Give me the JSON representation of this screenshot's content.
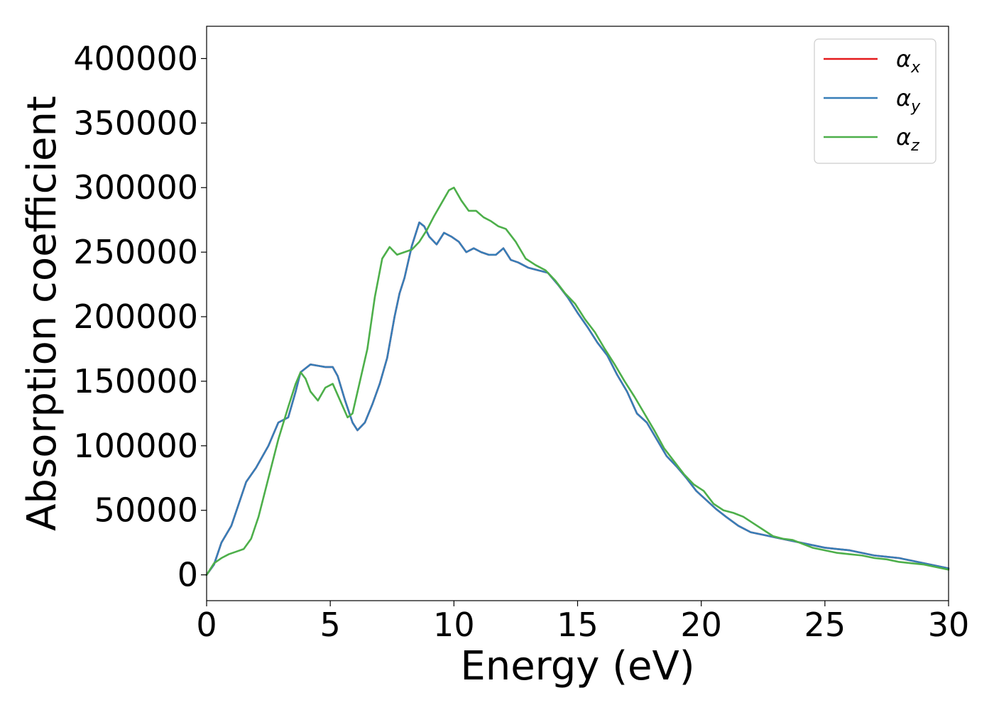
{
  "chart_data": {
    "type": "line",
    "title": "",
    "xlabel": "Energy (eV)",
    "ylabel": "Absorption coefficient",
    "xlim": [
      0,
      30
    ],
    "ylim": [
      -20000,
      425000
    ],
    "xticks": [
      0,
      5,
      10,
      15,
      20,
      25,
      30
    ],
    "yticks": [
      0,
      50000,
      100000,
      150000,
      200000,
      250000,
      300000,
      350000,
      400000
    ],
    "grid": false,
    "legend_placement": "top-right",
    "series": [
      {
        "name": "α_x",
        "label_base": "α",
        "label_sub": "x",
        "color": "#e41a1c",
        "x": [
          0,
          0.3,
          0.6,
          1.0,
          1.3,
          1.6,
          2.0,
          2.5,
          2.9,
          3.3,
          3.6,
          3.8,
          4.0,
          4.2,
          4.5,
          4.8,
          5.1,
          5.3,
          5.6,
          5.9,
          6.1,
          6.4,
          6.7,
          7.0,
          7.3,
          7.6,
          7.8,
          8.0,
          8.3,
          8.6,
          8.8,
          9.0,
          9.3,
          9.6,
          9.9,
          10.2,
          10.5,
          10.8,
          11.1,
          11.4,
          11.7,
          12.0,
          12.3,
          12.6,
          13.0,
          13.4,
          13.8,
          14.2,
          14.6,
          15.0,
          15.4,
          15.8,
          16.2,
          16.6,
          17.0,
          17.4,
          17.8,
          18.2,
          18.6,
          19.0,
          19.4,
          19.8,
          20.2,
          20.6,
          21.0,
          21.5,
          22.0,
          22.5,
          23.0,
          23.5,
          24.0,
          24.5,
          25.0,
          25.5,
          26.0,
          26.5,
          27.0,
          27.5,
          28.0,
          28.5,
          29.0,
          29.5,
          30.0
        ],
        "y": [
          0,
          8000,
          25000,
          38000,
          55000,
          72000,
          83000,
          100000,
          118000,
          122000,
          142000,
          157000,
          160000,
          163000,
          162000,
          161000,
          161000,
          154000,
          135000,
          118000,
          112000,
          118000,
          132000,
          148000,
          168000,
          200000,
          218000,
          230000,
          255000,
          273000,
          270000,
          262000,
          256000,
          265000,
          262000,
          258000,
          250000,
          253000,
          250000,
          248000,
          248000,
          253000,
          244000,
          242000,
          238000,
          236000,
          234000,
          225000,
          215000,
          203000,
          192000,
          180000,
          170000,
          155000,
          142000,
          125000,
          118000,
          105000,
          92000,
          84000,
          75000,
          65000,
          58000,
          51000,
          45000,
          38000,
          33000,
          31000,
          29000,
          27000,
          25000,
          23000,
          21000,
          20000,
          19000,
          17000,
          15000,
          14000,
          13000,
          11000,
          9000,
          7000,
          5000
        ]
      },
      {
        "name": "α_y",
        "label_base": "α",
        "label_sub": "y",
        "color": "#377eb8",
        "x": [
          0,
          0.3,
          0.6,
          1.0,
          1.3,
          1.6,
          2.0,
          2.5,
          2.9,
          3.3,
          3.6,
          3.8,
          4.0,
          4.2,
          4.5,
          4.8,
          5.1,
          5.3,
          5.6,
          5.9,
          6.1,
          6.4,
          6.7,
          7.0,
          7.3,
          7.6,
          7.8,
          8.0,
          8.3,
          8.6,
          8.8,
          9.0,
          9.3,
          9.6,
          9.9,
          10.2,
          10.5,
          10.8,
          11.1,
          11.4,
          11.7,
          12.0,
          12.3,
          12.6,
          13.0,
          13.4,
          13.8,
          14.2,
          14.6,
          15.0,
          15.4,
          15.8,
          16.2,
          16.6,
          17.0,
          17.4,
          17.8,
          18.2,
          18.6,
          19.0,
          19.4,
          19.8,
          20.2,
          20.6,
          21.0,
          21.5,
          22.0,
          22.5,
          23.0,
          23.5,
          24.0,
          24.5,
          25.0,
          25.5,
          26.0,
          26.5,
          27.0,
          27.5,
          28.0,
          28.5,
          29.0,
          29.5,
          30.0
        ],
        "y": [
          0,
          8000,
          25000,
          38000,
          55000,
          72000,
          83000,
          100000,
          118000,
          122000,
          142000,
          157000,
          160000,
          163000,
          162000,
          161000,
          161000,
          154000,
          135000,
          118000,
          112000,
          118000,
          132000,
          148000,
          168000,
          200000,
          218000,
          230000,
          255000,
          273000,
          270000,
          262000,
          256000,
          265000,
          262000,
          258000,
          250000,
          253000,
          250000,
          248000,
          248000,
          253000,
          244000,
          242000,
          238000,
          236000,
          234000,
          225000,
          215000,
          203000,
          192000,
          180000,
          170000,
          155000,
          142000,
          125000,
          118000,
          105000,
          92000,
          84000,
          75000,
          65000,
          58000,
          51000,
          45000,
          38000,
          33000,
          31000,
          29000,
          27000,
          25000,
          23000,
          21000,
          20000,
          19000,
          17000,
          15000,
          14000,
          13000,
          11000,
          9000,
          7000,
          5000
        ]
      },
      {
        "name": "α_z",
        "label_base": "α",
        "label_sub": "z",
        "color": "#4daf4a",
        "x": [
          0,
          0.3,
          0.6,
          0.9,
          1.2,
          1.5,
          1.8,
          2.1,
          2.5,
          2.9,
          3.3,
          3.6,
          3.8,
          4.0,
          4.2,
          4.5,
          4.8,
          5.1,
          5.4,
          5.7,
          5.9,
          6.2,
          6.5,
          6.8,
          7.1,
          7.4,
          7.7,
          8.0,
          8.3,
          8.6,
          8.9,
          9.2,
          9.5,
          9.8,
          10.0,
          10.3,
          10.6,
          10.9,
          11.2,
          11.5,
          11.8,
          12.1,
          12.5,
          12.9,
          13.3,
          13.7,
          14.1,
          14.5,
          14.9,
          15.3,
          15.7,
          16.1,
          16.5,
          16.9,
          17.3,
          17.7,
          18.1,
          18.5,
          18.9,
          19.3,
          19.7,
          20.1,
          20.5,
          20.9,
          21.3,
          21.7,
          22.1,
          22.5,
          22.9,
          23.3,
          23.7,
          24.1,
          24.5,
          25.0,
          25.5,
          26.0,
          26.5,
          27.0,
          27.5,
          28.0,
          28.5,
          29.0,
          29.5,
          30.0
        ],
        "y": [
          0,
          9000,
          13000,
          16000,
          18000,
          20000,
          28000,
          45000,
          75000,
          105000,
          130000,
          148000,
          157000,
          152000,
          142000,
          135000,
          145000,
          148000,
          135000,
          122000,
          125000,
          150000,
          175000,
          215000,
          245000,
          254000,
          248000,
          250000,
          252000,
          258000,
          267000,
          278000,
          288000,
          298000,
          300000,
          290000,
          282000,
          282000,
          277000,
          274000,
          270000,
          268000,
          258000,
          245000,
          240000,
          236000,
          228000,
          218000,
          210000,
          198000,
          188000,
          175000,
          163000,
          150000,
          138000,
          125000,
          112000,
          98000,
          88000,
          78000,
          70000,
          65000,
          55000,
          50000,
          48000,
          45000,
          40000,
          35000,
          30000,
          28000,
          27000,
          24000,
          21000,
          19000,
          17000,
          16000,
          15000,
          13000,
          12000,
          10000,
          9000,
          8000,
          6000,
          4000
        ]
      }
    ]
  }
}
